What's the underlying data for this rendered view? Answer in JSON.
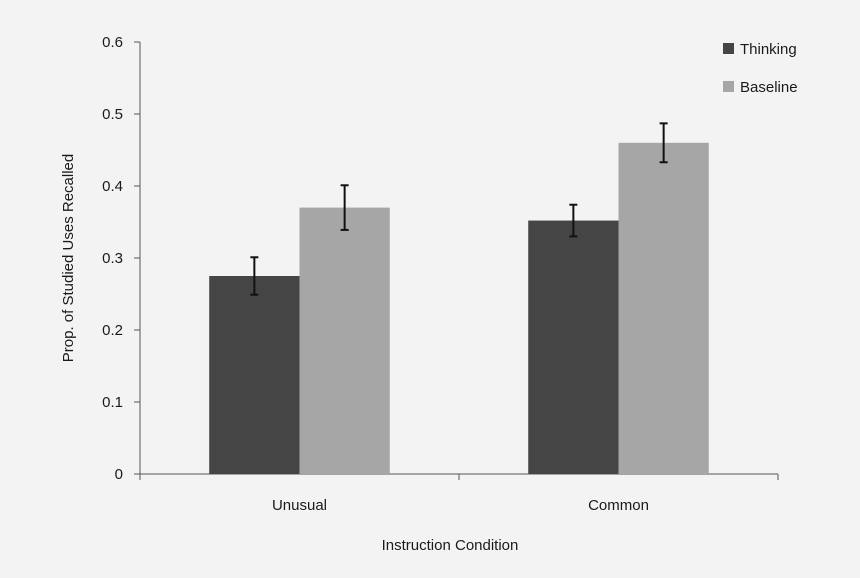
{
  "chart_data": {
    "type": "bar",
    "title": "",
    "xlabel": "Instruction  Condition",
    "ylabel": "Prop. of Studied Uses Recalled",
    "categories": [
      "Unusual",
      "Common"
    ],
    "ylim": [
      0,
      0.6
    ],
    "yticks": [
      0,
      0.1,
      0.2,
      0.3,
      0.4,
      0.5,
      0.6
    ],
    "ytick_labels": [
      "0",
      "0.1",
      "0.2",
      "0.3",
      "0.4",
      "0.5",
      "0.6"
    ],
    "series": [
      {
        "name": "Thinking",
        "values": [
          0.275,
          0.352
        ],
        "errors": [
          0.026,
          0.022
        ],
        "color": "#454545"
      },
      {
        "name": "Baseline",
        "values": [
          0.37,
          0.46
        ],
        "errors": [
          0.031,
          0.027
        ],
        "color": "#a6a6a6"
      }
    ],
    "legend_position": "top-right",
    "grid": false
  }
}
